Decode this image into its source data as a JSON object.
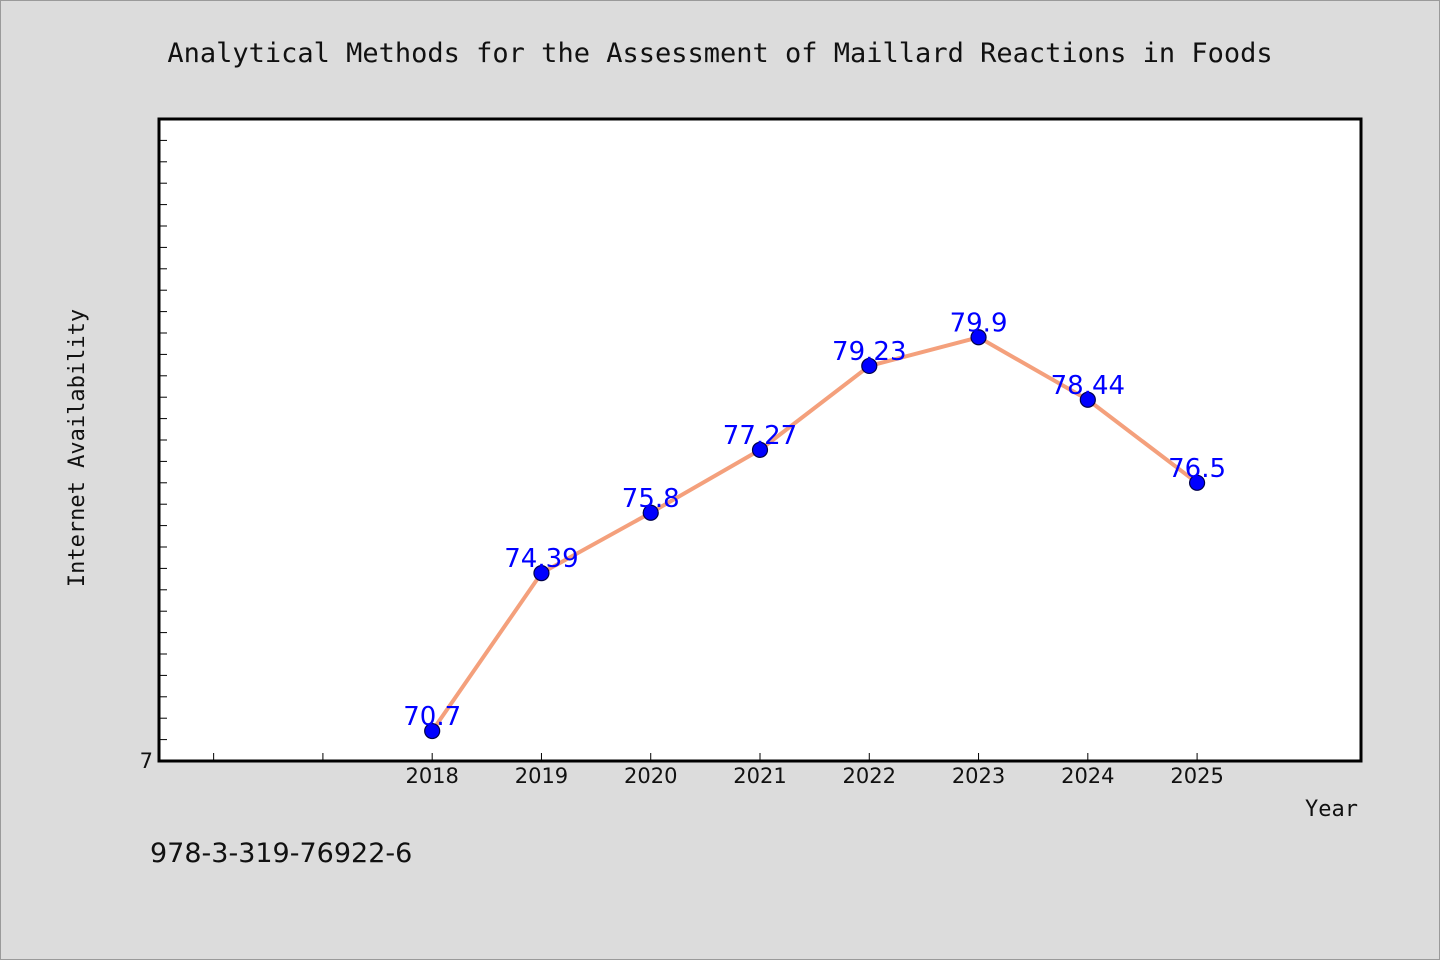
{
  "footer": {
    "isbn": "978-3-319-76922-6"
  },
  "colors": {
    "background": "#dcdcdc",
    "plot_area": "#ffffff",
    "line": "#f4a07c",
    "marker": "#0000ff",
    "data_label": "#0000ff"
  },
  "chart_data": {
    "type": "line",
    "title": "Analytical Methods for the Assessment of Maillard Reactions in Foods",
    "xlabel": "Year",
    "ylabel": "Internet Availability",
    "categories": [
      "2018",
      "2019",
      "2020",
      "2021",
      "2022",
      "2023",
      "2024",
      "2025"
    ],
    "values": [
      70.7,
      74.39,
      75.8,
      77.27,
      79.23,
      79.9,
      78.44,
      76.5
    ],
    "data_labels": [
      "70.7",
      "74.39",
      "75.8",
      "77.27",
      "79.23",
      "79.9",
      "78.44",
      "76.5"
    ],
    "y_tick_labels": [
      "7"
    ],
    "ylim": [
      70,
      85
    ],
    "xlim": [
      2015.5,
      2026.5
    ],
    "grid": false,
    "legend": "none"
  }
}
